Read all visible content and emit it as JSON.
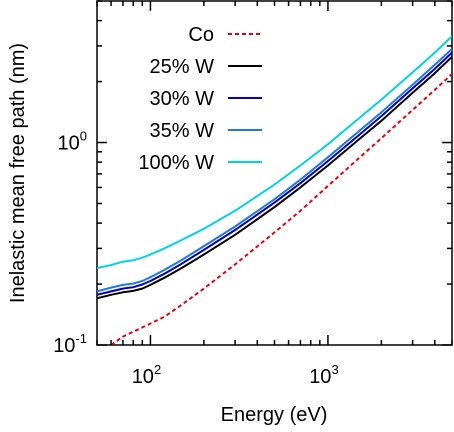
{
  "chart_data": {
    "type": "line",
    "title": "",
    "xlabel": "Energy (eV)",
    "ylabel": "Inelastic mean free path (nm)",
    "x_scale": "log",
    "y_scale": "log",
    "xlim": [
      50,
      5000
    ],
    "ylim": [
      0.1,
      5.0
    ],
    "x_ticks": [
      {
        "value": 100,
        "base": "10",
        "exp": "2"
      },
      {
        "value": 1000,
        "base": "10",
        "exp": "3"
      }
    ],
    "y_ticks": [
      {
        "value": 0.1,
        "base": "10",
        "exp": "-1"
      },
      {
        "value": 1.0,
        "base": "10",
        "exp": "0"
      }
    ],
    "grid": false,
    "legend_position": "top-left",
    "series": [
      {
        "name": "Co",
        "color": "#e8000b",
        "dash": "dashed",
        "points": [
          [
            60,
            0.1
          ],
          [
            70,
            0.11
          ],
          [
            90,
            0.122
          ],
          [
            120,
            0.138
          ],
          [
            150,
            0.158
          ],
          [
            200,
            0.19
          ],
          [
            300,
            0.25
          ],
          [
            500,
            0.36
          ],
          [
            700,
            0.46
          ],
          [
            1000,
            0.61
          ],
          [
            1500,
            0.84
          ],
          [
            2000,
            1.05
          ],
          [
            3000,
            1.45
          ],
          [
            4000,
            1.82
          ],
          [
            5000,
            2.18
          ]
        ]
      },
      {
        "name": "25% W",
        "color": "#000000",
        "dash": "solid",
        "points": [
          [
            50,
            0.17
          ],
          [
            60,
            0.177
          ],
          [
            70,
            0.182
          ],
          [
            80,
            0.185
          ],
          [
            90,
            0.19
          ],
          [
            100,
            0.198
          ],
          [
            120,
            0.215
          ],
          [
            150,
            0.24
          ],
          [
            200,
            0.28
          ],
          [
            300,
            0.35
          ],
          [
            500,
            0.48
          ],
          [
            700,
            0.6
          ],
          [
            1000,
            0.77
          ],
          [
            1500,
            1.04
          ],
          [
            2000,
            1.28
          ],
          [
            3000,
            1.76
          ],
          [
            4000,
            2.2
          ],
          [
            5000,
            2.65
          ]
        ]
      },
      {
        "name": "30% W",
        "color": "#0000c8",
        "dash": "solid",
        "points": [
          [
            50,
            0.177
          ],
          [
            60,
            0.184
          ],
          [
            70,
            0.19
          ],
          [
            80,
            0.193
          ],
          [
            90,
            0.199
          ],
          [
            100,
            0.207
          ],
          [
            120,
            0.225
          ],
          [
            150,
            0.252
          ],
          [
            200,
            0.295
          ],
          [
            300,
            0.37
          ],
          [
            500,
            0.505
          ],
          [
            700,
            0.63
          ],
          [
            1000,
            0.81
          ],
          [
            1500,
            1.09
          ],
          [
            2000,
            1.35
          ],
          [
            3000,
            1.85
          ],
          [
            4000,
            2.31
          ],
          [
            5000,
            2.78
          ]
        ]
      },
      {
        "name": "35% W",
        "color": "#1e78e6",
        "dash": "solid",
        "points": [
          [
            50,
            0.184
          ],
          [
            60,
            0.192
          ],
          [
            70,
            0.198
          ],
          [
            80,
            0.201
          ],
          [
            90,
            0.207
          ],
          [
            100,
            0.216
          ],
          [
            120,
            0.235
          ],
          [
            150,
            0.263
          ],
          [
            200,
            0.308
          ],
          [
            300,
            0.385
          ],
          [
            500,
            0.525
          ],
          [
            700,
            0.655
          ],
          [
            1000,
            0.845
          ],
          [
            1500,
            1.14
          ],
          [
            2000,
            1.41
          ],
          [
            3000,
            1.93
          ],
          [
            4000,
            2.42
          ],
          [
            5000,
            2.9
          ]
        ]
      },
      {
        "name": "100% W",
        "color": "#00d2e6",
        "dash": "solid",
        "points": [
          [
            50,
            0.24
          ],
          [
            60,
            0.248
          ],
          [
            70,
            0.258
          ],
          [
            80,
            0.262
          ],
          [
            90,
            0.27
          ],
          [
            100,
            0.28
          ],
          [
            120,
            0.3
          ],
          [
            150,
            0.33
          ],
          [
            200,
            0.375
          ],
          [
            300,
            0.46
          ],
          [
            500,
            0.62
          ],
          [
            700,
            0.77
          ],
          [
            1000,
            0.98
          ],
          [
            1500,
            1.32
          ],
          [
            2000,
            1.63
          ],
          [
            3000,
            2.22
          ],
          [
            4000,
            2.78
          ],
          [
            5000,
            3.35
          ]
        ]
      }
    ]
  }
}
